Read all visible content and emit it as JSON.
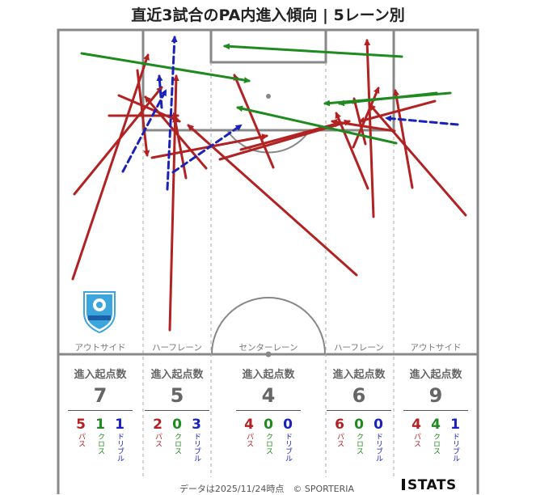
{
  "title": "直近3試合のPA内進入傾向 | 5レーン別",
  "colors": {
    "pass": "#b22222",
    "cross": "#1f8a1f",
    "dribble": "#1a22b8"
  },
  "lanes": [
    {
      "label": "アウトサイド",
      "head": "進入起点数",
      "total": "7",
      "pass": "5",
      "cross": "1",
      "dribble": "1"
    },
    {
      "label": "ハーフレーン",
      "head": "進入起点数",
      "total": "5",
      "pass": "2",
      "cross": "0",
      "dribble": "3"
    },
    {
      "label": "センターレーン",
      "head": "進入起点数",
      "total": "4",
      "pass": "4",
      "cross": "0",
      "dribble": "0"
    },
    {
      "label": "ハーフレーン",
      "head": "進入起点数",
      "total": "6",
      "pass": "6",
      "cross": "0",
      "dribble": "0"
    },
    {
      "label": "アウトサイド",
      "head": "進入起点数",
      "total": "9",
      "pass": "4",
      "cross": "4",
      "dribble": "1"
    }
  ],
  "type_labels": {
    "pass": "パス",
    "cross": "クロス",
    "dribble": "ドリブル"
  },
  "footer": "データは2025/11/24時点　© SPORTERIA",
  "brand": "STATS",
  "club_logo_text": "azul claro",
  "chart_data": {
    "type": "scatter",
    "arrows": [
      {
        "type": "pass",
        "from": [
          90,
          345
        ],
        "to": [
          183,
          68
        ]
      },
      {
        "type": "pass",
        "from": [
          92,
          240
        ],
        "to": [
          200,
          108
        ]
      },
      {
        "type": "pass",
        "from": [
          135,
          143
        ],
        "to": [
          220,
          143
        ]
      },
      {
        "type": "pass",
        "from": [
          147,
          118
        ],
        "to": [
          222,
          150
        ]
      },
      {
        "type": "pass",
        "from": [
          170,
          87
        ],
        "to": [
          182,
          192
        ]
      },
      {
        "type": "pass",
        "from": [
          210,
          408
        ],
        "to": [
          218,
          94
        ]
      },
      {
        "type": "pass",
        "from": [
          230,
          220
        ],
        "to": [
          216,
          145
        ]
      },
      {
        "type": "pass",
        "from": [
          188,
          195
        ],
        "to": [
          330,
          168
        ]
      },
      {
        "type": "pass",
        "from": [
          255,
          208
        ],
        "to": [
          180,
          120
        ]
      },
      {
        "type": "pass",
        "from": [
          338,
          207
        ],
        "to": [
          290,
          93
        ]
      },
      {
        "type": "pass",
        "from": [
          441,
          340
        ],
        "to": [
          233,
          155
        ]
      },
      {
        "type": "pass",
        "from": [
          272,
          197
        ],
        "to": [
          432,
          150
        ]
      },
      {
        "type": "pass",
        "from": [
          298,
          185
        ],
        "to": [
          420,
          152
        ]
      },
      {
        "type": "pass",
        "from": [
          455,
          233
        ],
        "to": [
          416,
          140
        ]
      },
      {
        "type": "pass",
        "from": [
          462,
          268
        ],
        "to": [
          454,
          50
        ]
      },
      {
        "type": "pass",
        "from": [
          437,
          182
        ],
        "to": [
          468,
          109
        ]
      },
      {
        "type": "pass",
        "from": [
          488,
          162
        ],
        "to": [
          411,
          150
        ]
      },
      {
        "type": "pass",
        "from": [
          510,
          232
        ],
        "to": [
          489,
          112
        ]
      },
      {
        "type": "pass",
        "from": [
          576,
          266
        ],
        "to": [
          458,
          130
        ]
      },
      {
        "type": "pass",
        "from": [
          538,
          125
        ],
        "to": [
          445,
          150
        ]
      },
      {
        "type": "pass",
        "from": [
          452,
          178
        ],
        "to": [
          438,
          122
        ]
      },
      {
        "type": "cross",
        "from": [
          101,
          66
        ],
        "to": [
          308,
          100
        ]
      },
      {
        "type": "cross",
        "from": [
          497,
          70
        ],
        "to": [
          278,
          57
        ]
      },
      {
        "type": "cross",
        "from": [
          557,
          115
        ],
        "to": [
          402,
          128
        ]
      },
      {
        "type": "cross",
        "from": [
          490,
          177
        ],
        "to": [
          294,
          133
        ]
      },
      {
        "type": "cross",
        "from": [
          540,
          115
        ],
        "to": [
          420,
          128
        ]
      },
      {
        "type": "dribble",
        "from": [
          152,
          212
        ],
        "to": [
          205,
          112
        ]
      },
      {
        "type": "dribble",
        "from": [
          207,
          234
        ],
        "to": [
          216,
          46
        ]
      },
      {
        "type": "dribble",
        "from": [
          214,
          213
        ],
        "to": [
          298,
          155
        ]
      },
      {
        "type": "dribble",
        "from": [
          200,
          133
        ],
        "to": [
          197,
          94
        ]
      },
      {
        "type": "dribble",
        "from": [
          566,
          154
        ],
        "to": [
          478,
          146
        ]
      }
    ]
  }
}
